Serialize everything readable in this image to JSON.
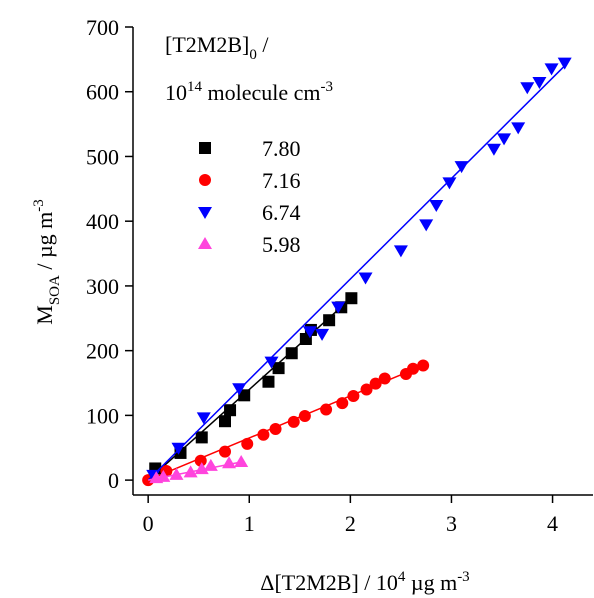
{
  "chart_data": {
    "type": "scatter",
    "legend_title": [
      [
        {
          "text": "[T2M2B]"
        },
        {
          "text": "0",
          "shift": "sub"
        },
        {
          "text": " /"
        }
      ],
      [
        {
          "text": "10"
        },
        {
          "text": "14",
          "shift": "sup"
        },
        {
          "text": " molecule cm"
        },
        {
          "text": "-3",
          "shift": "sup"
        }
      ]
    ],
    "xlabel": [
      {
        "text": "Δ[T2M2B] / 10"
      },
      {
        "text": "4",
        "shift": "sup"
      },
      {
        "text": " µg m"
      },
      {
        "text": "-3",
        "shift": "sup"
      }
    ],
    "ylabel": [
      {
        "text": "M"
      },
      {
        "text": "SOA",
        "shift": "sub"
      },
      {
        "text": "  /  µg m"
      },
      {
        "text": "-3",
        "shift": "sup"
      }
    ],
    "xlim": [
      -0.15,
      4.4
    ],
    "ylim": [
      -23,
      700
    ],
    "xticks": [
      0,
      1,
      2,
      3,
      4
    ],
    "yticks": [
      0,
      100,
      200,
      300,
      400,
      500,
      600,
      700
    ],
    "series": [
      {
        "name": "7.80",
        "color": "#000000",
        "marker": "square",
        "x": [
          0.07,
          0.32,
          0.53,
          0.76,
          0.81,
          0.95,
          1.19,
          1.29,
          1.42,
          1.56,
          1.61,
          1.79,
          1.91,
          2.01
        ],
        "values": [
          18,
          42,
          66,
          91,
          108,
          131,
          152,
          173,
          196,
          218,
          232,
          247,
          267,
          281
        ],
        "fit": {
          "x": [
            0,
            2.0
          ],
          "y": [
            0,
            280
          ]
        }
      },
      {
        "name": "7.16",
        "color": "#ff0000",
        "marker": "circle",
        "x": [
          0,
          0.18,
          0.52,
          0.76,
          0.98,
          1.14,
          1.26,
          1.44,
          1.55,
          1.76,
          1.92,
          2.03,
          2.16,
          2.25,
          2.34,
          2.55,
          2.62,
          2.72
        ],
        "values": [
          0,
          14,
          30,
          44,
          56,
          70,
          79,
          90,
          99,
          109,
          119,
          130,
          140,
          149,
          157,
          164,
          172,
          177
        ],
        "fit": {
          "x": [
            0,
            2.72
          ],
          "y": [
            0,
            177
          ]
        }
      },
      {
        "name": "6.74",
        "color": "#0000ff",
        "marker": "tri-down",
        "x": [
          0.05,
          0.3,
          0.55,
          0.9,
          1.22,
          1.6,
          1.72,
          1.88,
          2.15,
          2.5,
          2.75,
          2.85,
          2.98,
          3.1,
          3.42,
          3.52,
          3.66,
          3.75,
          3.87,
          3.99,
          4.12
        ],
        "values": [
          8,
          50,
          97,
          142,
          183,
          230,
          226,
          268,
          313,
          355,
          395,
          425,
          460,
          485,
          512,
          528,
          545,
          607,
          615,
          636,
          645
        ],
        "fit": {
          "x": [
            0,
            4.12
          ],
          "y": [
            0,
            640
          ]
        }
      },
      {
        "name": "5.98",
        "color": "#ff44dd",
        "marker": "tri-up",
        "x": [
          0.08,
          0.15,
          0.28,
          0.42,
          0.53,
          0.62,
          0.8,
          0.92
        ],
        "values": [
          3,
          5,
          8,
          12,
          17,
          22,
          26,
          28
        ],
        "fit": {
          "x": [
            0,
            0.92
          ],
          "y": [
            0,
            28
          ]
        }
      }
    ]
  }
}
